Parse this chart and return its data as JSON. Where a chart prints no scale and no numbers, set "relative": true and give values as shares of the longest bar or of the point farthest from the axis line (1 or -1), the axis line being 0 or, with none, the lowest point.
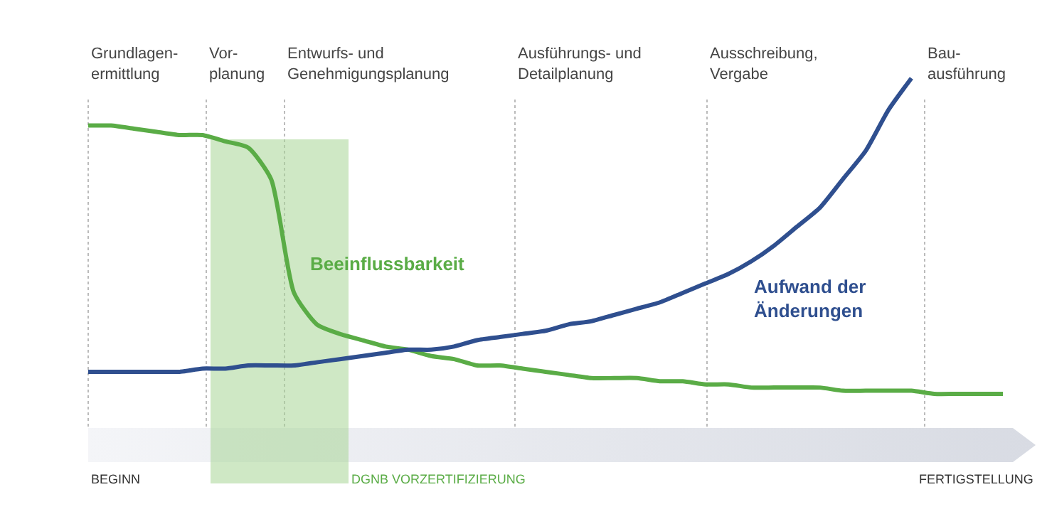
{
  "chart_data": {
    "type": "line",
    "relative": true,
    "grid": "x",
    "legend": false,
    "line_style": "solid",
    "marker": "none",
    "categories": [
      null,
      null,
      null,
      null,
      null,
      null,
      null,
      null,
      null,
      null,
      null,
      null,
      null,
      null,
      null,
      null,
      null,
      null,
      null,
      null,
      null,
      null,
      null,
      null,
      null,
      null,
      null,
      null,
      null,
      null,
      null,
      null,
      null,
      null,
      null,
      null,
      null,
      null,
      null,
      null,
      null
    ],
    "series": [
      {
        "name": "Beeinflussbarkeit",
        "color": "#5aac46",
        "values": [
          0.85,
          0.85,
          0.84,
          0.83,
          0.82,
          0.82,
          0.8,
          0.78,
          0.68,
          0.32,
          0.22,
          0.19,
          0.17,
          0.15,
          0.14,
          0.12,
          0.11,
          0.09,
          0.09,
          0.08,
          0.07,
          0.06,
          0.05,
          0.05,
          0.05,
          0.04,
          0.04,
          0.03,
          0.03,
          0.02,
          0.02,
          0.02,
          0.02,
          0.01,
          0.01,
          0.01,
          0.01,
          0,
          0,
          0,
          0
        ]
      },
      {
        "name": "Aufwand der Änderungen",
        "color": "#2f4f8f",
        "values": [
          0.07,
          0.07,
          0.07,
          0.07,
          0.07,
          0.08,
          0.08,
          0.09,
          0.09,
          0.09,
          0.1,
          0.11,
          0.12,
          0.13,
          0.14,
          0.14,
          0.15,
          0.17,
          0.18,
          0.19,
          0.2,
          0.22,
          0.23,
          0.25,
          0.27,
          0.29,
          0.32,
          0.35,
          0.38,
          0.42,
          0.47,
          0.53,
          0.59,
          0.68,
          0.77,
          0.9,
          1.0,
          null,
          null,
          null,
          null
        ]
      }
    ],
    "annotations": [
      "Grundlagen-\nermittlung",
      "Vor-\nplanung",
      "Entwurfs- und\nGenehmigungsplanung",
      "Ausführungs- und\nDetailplanung",
      "Ausschreibung,\nVergabe",
      "Bau-\nausführung",
      "DGNB VORZERTIFIZIERUNG",
      "BEGINN",
      "FERTIGSTELLUNG"
    ]
  }
}
